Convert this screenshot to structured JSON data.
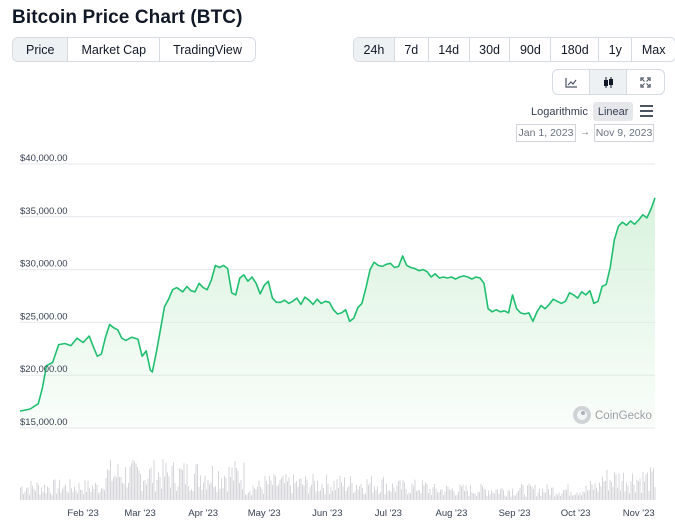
{
  "header": {
    "title": "Bitcoin Price Chart (BTC)"
  },
  "tabs": [
    {
      "label": "Price",
      "active": true
    },
    {
      "label": "Market Cap",
      "active": false
    },
    {
      "label": "TradingView",
      "active": false
    }
  ],
  "ranges": [
    {
      "label": "24h",
      "active": true
    },
    {
      "label": "7d",
      "active": false
    },
    {
      "label": "14d",
      "active": false
    },
    {
      "label": "30d",
      "active": false
    },
    {
      "label": "90d",
      "active": false
    },
    {
      "label": "180d",
      "active": false
    },
    {
      "label": "1y",
      "active": false
    },
    {
      "label": "Max",
      "active": false
    }
  ],
  "chart_type_buttons": [
    {
      "icon": "line-chart-icon",
      "active": false
    },
    {
      "icon": "candlestick-icon",
      "active": true
    },
    {
      "icon": "fullscreen-icon",
      "active": false
    }
  ],
  "scale": {
    "logarithmic_label": "Logarithmic",
    "linear_label": "Linear",
    "selected": "Linear"
  },
  "date_range": {
    "from": "Jan 1, 2023",
    "to": "Nov 9, 2023",
    "separator": "→"
  },
  "watermark": "CoinGecko",
  "colors": {
    "line": "#1fbf6f",
    "area_top": "#d7f2dc",
    "volume": "#d4d6da",
    "grid": "#e5e7eb"
  },
  "chart_data": {
    "type": "area",
    "series": [
      {
        "name": "Price"
      }
    ],
    "y_ticks": [
      "$40,000.00",
      "$35,000.00",
      "$30,000.00",
      "$25,000.00",
      "$20,000.00",
      "$15,000.00"
    ],
    "y_tick_values": [
      40000,
      35000,
      30000,
      25000,
      20000,
      15000
    ],
    "ylim": [
      15000,
      40000
    ],
    "x_ticks": [
      "Feb '23",
      "Mar '23",
      "Apr '23",
      "May '23",
      "Jun '23",
      "Jul '23",
      "Aug '23",
      "Sep '23",
      "Oct '23",
      "Nov '23"
    ],
    "x_tick_days": [
      31,
      59,
      90,
      120,
      151,
      181,
      212,
      243,
      273,
      304
    ],
    "xlim_days": [
      0,
      312
    ],
    "grid": true,
    "price_points": [
      [
        0,
        16600
      ],
      [
        5,
        16800
      ],
      [
        9,
        17300
      ],
      [
        11,
        18800
      ],
      [
        13,
        20900
      ],
      [
        16,
        21200
      ],
      [
        19,
        22900
      ],
      [
        22,
        23000
      ],
      [
        25,
        22800
      ],
      [
        28,
        23500
      ],
      [
        31,
        23100
      ],
      [
        34,
        23700
      ],
      [
        36,
        22700
      ],
      [
        38,
        21800
      ],
      [
        40,
        22000
      ],
      [
        42,
        23600
      ],
      [
        44,
        24800
      ],
      [
        46,
        24500
      ],
      [
        48,
        24300
      ],
      [
        50,
        23500
      ],
      [
        52,
        23300
      ],
      [
        55,
        23600
      ],
      [
        58,
        23400
      ],
      [
        60,
        21800
      ],
      [
        62,
        22300
      ],
      [
        64,
        20500
      ],
      [
        65,
        20300
      ],
      [
        67,
        22200
      ],
      [
        69,
        24300
      ],
      [
        71,
        26500
      ],
      [
        73,
        27200
      ],
      [
        75,
        28100
      ],
      [
        77,
        28300
      ],
      [
        80,
        27900
      ],
      [
        82,
        28400
      ],
      [
        84,
        28000
      ],
      [
        86,
        27900
      ],
      [
        88,
        28700
      ],
      [
        90,
        28300
      ],
      [
        92,
        28100
      ],
      [
        94,
        29000
      ],
      [
        96,
        30400
      ],
      [
        98,
        30200
      ],
      [
        100,
        30400
      ],
      [
        102,
        30100
      ],
      [
        104,
        27800
      ],
      [
        106,
        27600
      ],
      [
        108,
        29200
      ],
      [
        110,
        29500
      ],
      [
        112,
        28900
      ],
      [
        114,
        29300
      ],
      [
        116,
        28700
      ],
      [
        118,
        27700
      ],
      [
        120,
        28500
      ],
      [
        122,
        28900
      ],
      [
        124,
        27300
      ],
      [
        126,
        26900
      ],
      [
        128,
        26900
      ],
      [
        130,
        27100
      ],
      [
        132,
        26800
      ],
      [
        134,
        27000
      ],
      [
        136,
        27300
      ],
      [
        138,
        26700
      ],
      [
        140,
        27400
      ],
      [
        142,
        27100
      ],
      [
        144,
        26700
      ],
      [
        146,
        27200
      ],
      [
        148,
        26800
      ],
      [
        150,
        27000
      ],
      [
        152,
        26900
      ],
      [
        154,
        26200
      ],
      [
        156,
        25800
      ],
      [
        158,
        25900
      ],
      [
        160,
        26200
      ],
      [
        162,
        25100
      ],
      [
        164,
        25400
      ],
      [
        166,
        26400
      ],
      [
        168,
        26800
      ],
      [
        170,
        28300
      ],
      [
        172,
        30000
      ],
      [
        174,
        30700
      ],
      [
        176,
        30400
      ],
      [
        178,
        30300
      ],
      [
        180,
        30500
      ],
      [
        182,
        30600
      ],
      [
        184,
        30200
      ],
      [
        186,
        30300
      ],
      [
        188,
        31300
      ],
      [
        190,
        30400
      ],
      [
        192,
        30200
      ],
      [
        194,
        30100
      ],
      [
        196,
        29900
      ],
      [
        198,
        30000
      ],
      [
        200,
        29800
      ],
      [
        202,
        29300
      ],
      [
        204,
        29600
      ],
      [
        206,
        29200
      ],
      [
        208,
        29300
      ],
      [
        210,
        29200
      ],
      [
        212,
        29300
      ],
      [
        214,
        29100
      ],
      [
        216,
        29300
      ],
      [
        218,
        29400
      ],
      [
        220,
        29300
      ],
      [
        222,
        29100
      ],
      [
        224,
        29300
      ],
      [
        226,
        29200
      ],
      [
        228,
        28700
      ],
      [
        230,
        26300
      ],
      [
        232,
        26000
      ],
      [
        234,
        26200
      ],
      [
        236,
        26000
      ],
      [
        238,
        26100
      ],
      [
        240,
        25900
      ],
      [
        242,
        27600
      ],
      [
        244,
        26300
      ],
      [
        246,
        25900
      ],
      [
        248,
        25800
      ],
      [
        250,
        25900
      ],
      [
        252,
        25100
      ],
      [
        254,
        26000
      ],
      [
        256,
        26600
      ],
      [
        258,
        26300
      ],
      [
        260,
        26700
      ],
      [
        262,
        27200
      ],
      [
        264,
        27000
      ],
      [
        266,
        26800
      ],
      [
        268,
        27000
      ],
      [
        270,
        27800
      ],
      [
        272,
        27600
      ],
      [
        274,
        27300
      ],
      [
        276,
        27900
      ],
      [
        278,
        27600
      ],
      [
        280,
        28000
      ],
      [
        282,
        26800
      ],
      [
        284,
        27000
      ],
      [
        286,
        28400
      ],
      [
        288,
        28600
      ],
      [
        290,
        30200
      ],
      [
        292,
        32800
      ],
      [
        294,
        34100
      ],
      [
        296,
        34500
      ],
      [
        298,
        34200
      ],
      [
        300,
        34600
      ],
      [
        302,
        34300
      ],
      [
        304,
        34700
      ],
      [
        306,
        35200
      ],
      [
        308,
        34900
      ],
      [
        310,
        35700
      ],
      [
        312,
        36800
      ]
    ]
  }
}
